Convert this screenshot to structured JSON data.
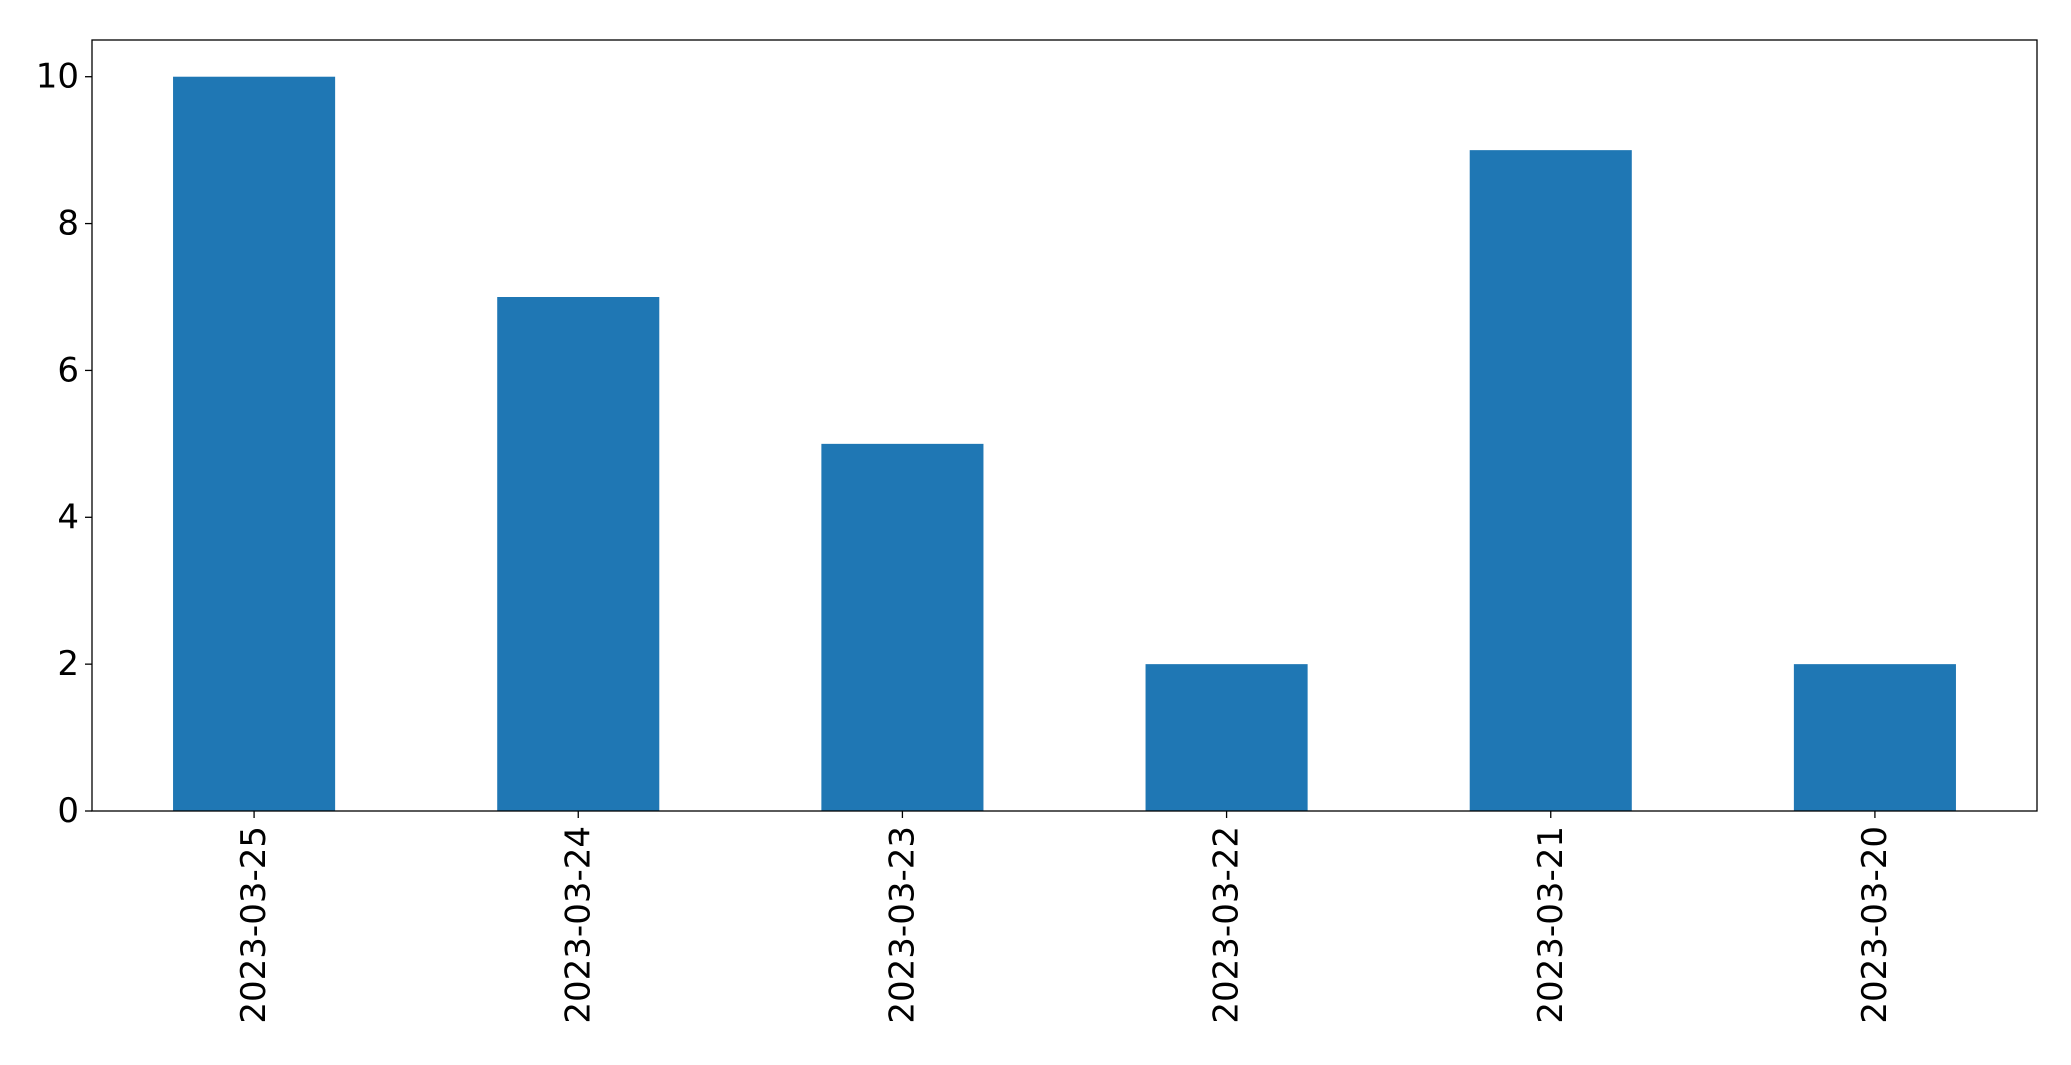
{
  "chart_data": {
    "type": "bar",
    "categories": [
      "2023-03-25",
      "2023-03-24",
      "2023-03-23",
      "2023-03-22",
      "2023-03-21",
      "2023-03-20"
    ],
    "values": [
      10,
      7,
      5,
      2,
      9,
      2
    ],
    "ylim": [
      0,
      10.5
    ],
    "yticks": [
      0,
      2,
      4,
      6,
      8,
      10
    ],
    "title": "",
    "xlabel": "",
    "ylabel": "",
    "grid": false,
    "bar_color": "#1f77b4"
  }
}
